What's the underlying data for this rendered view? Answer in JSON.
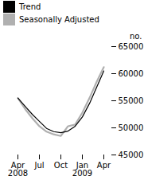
{
  "chart_data": {
    "type": "line",
    "categories": [
      "Apr\n2008",
      null,
      null,
      "Jul",
      null,
      null,
      "Oct",
      null,
      null,
      "Jan\n2009",
      null,
      null,
      "Apr"
    ],
    "ylabel": "no.",
    "ylim": [
      45000,
      65000
    ],
    "yticks": [
      45000,
      50000,
      55000,
      60000,
      65000
    ],
    "legend": "upper left",
    "grid": false,
    "series": [
      {
        "name": "Trend",
        "color": "#000000",
        "values": [
          55500,
          54000,
          52500,
          51200,
          49900,
          49300,
          49100,
          49400,
          50300,
          52000,
          54500,
          57500,
          60500
        ]
      },
      {
        "name": "Seasonally Adjusted",
        "color": "#b0b0b0",
        "values": [
          55500,
          53500,
          51800,
          50300,
          49300,
          48800,
          48500,
          50300,
          50600,
          52800,
          55500,
          58500,
          61200
        ]
      }
    ]
  }
}
